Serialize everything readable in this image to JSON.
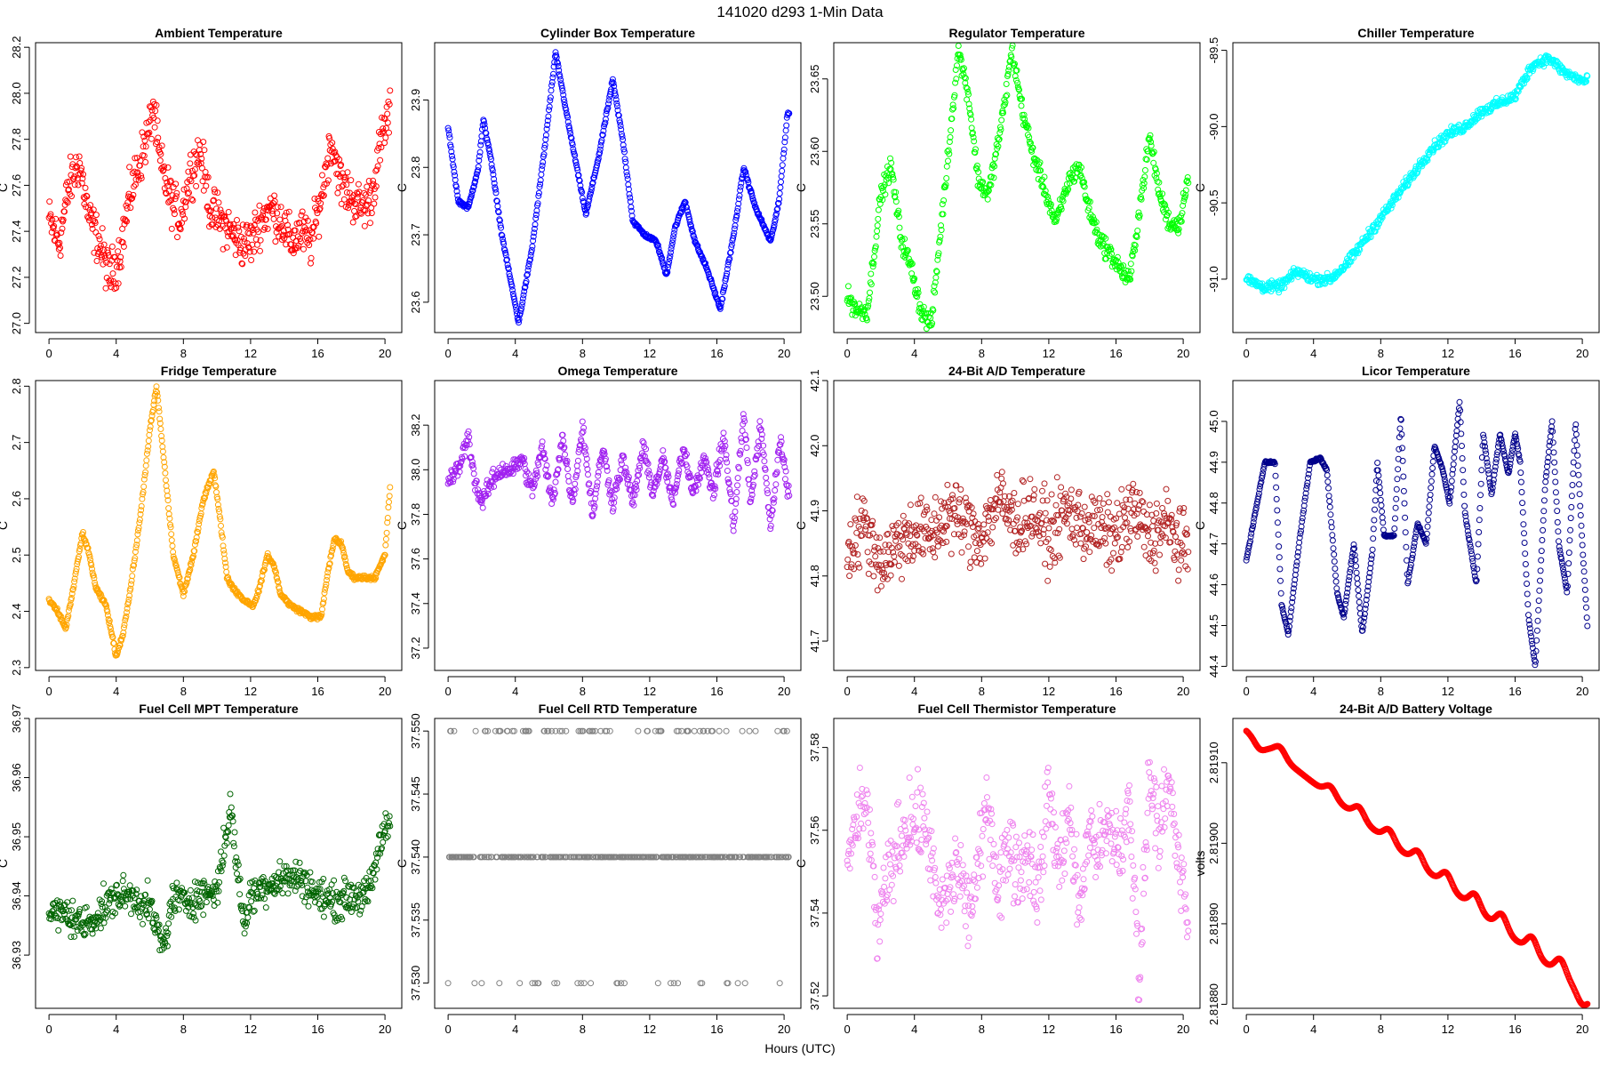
{
  "figure": {
    "super_title": "141020    d293    1-Min Data",
    "x_axis_label": "Hours (UTC)"
  },
  "chart_data": [
    {
      "type": "scatter",
      "title": "Ambient Temperature",
      "ylabel": "C",
      "xlabel": "",
      "color": "#ff0000",
      "xlim": [
        -0.8,
        21.0
      ],
      "ylim": [
        26.96,
        28.22
      ],
      "xticks": [
        0,
        4,
        8,
        12,
        16,
        20
      ],
      "yticks": [
        "27.0",
        "27.2",
        "27.4",
        "27.6",
        "27.8",
        "28.0",
        "28.2"
      ],
      "x": [
        0,
        0.6,
        1.2,
        1.8,
        2.4,
        3.0,
        3.6,
        4.2,
        4.8,
        5.4,
        6.0,
        6.2,
        6.6,
        7.2,
        7.8,
        8.4,
        9.0,
        9.6,
        10.2,
        10.8,
        11.4,
        12.0,
        12.6,
        13.2,
        13.8,
        14.4,
        15.0,
        15.6,
        16.2,
        16.8,
        17.4,
        18.0,
        18.6,
        19.2,
        19.8,
        20.2
      ],
      "y": [
        27.45,
        27.35,
        27.6,
        27.7,
        27.45,
        27.35,
        27.2,
        27.3,
        27.55,
        27.7,
        27.85,
        27.95,
        27.7,
        27.55,
        27.45,
        27.65,
        27.75,
        27.5,
        27.45,
        27.4,
        27.35,
        27.35,
        27.45,
        27.5,
        27.45,
        27.35,
        27.4,
        27.35,
        27.55,
        27.8,
        27.6,
        27.55,
        27.5,
        27.55,
        27.8,
        27.9
      ],
      "spread": 0.15
    },
    {
      "type": "scatter",
      "title": "Cylinder Box Temperature",
      "ylabel": "C",
      "xlabel": "",
      "color": "#0000ff",
      "xlim": [
        -0.8,
        21.0
      ],
      "ylim": [
        23.555,
        23.985
      ],
      "xticks": [
        0,
        4,
        8,
        12,
        16,
        20
      ],
      "yticks": [
        "23.6",
        "23.7",
        "23.8",
        "23.9"
      ],
      "x": [
        0,
        0.6,
        1.2,
        1.8,
        2.1,
        2.5,
        3.2,
        4.2,
        5.0,
        5.8,
        6.4,
        7.2,
        8.2,
        9.0,
        9.8,
        10.4,
        11.0,
        11.7,
        12.4,
        13.0,
        13.5,
        14.1,
        14.7,
        15.4,
        16.2,
        17.0,
        17.6,
        18.3,
        19.2,
        19.7,
        20.2
      ],
      "y": [
        23.86,
        23.75,
        23.74,
        23.8,
        23.87,
        23.82,
        23.7,
        23.57,
        23.68,
        23.84,
        23.97,
        23.86,
        23.73,
        23.82,
        23.93,
        23.84,
        23.72,
        23.7,
        23.69,
        23.64,
        23.71,
        23.75,
        23.69,
        23.65,
        23.59,
        23.7,
        23.8,
        23.74,
        23.69,
        23.75,
        23.88
      ],
      "spread": 0.004
    },
    {
      "type": "scatter",
      "title": "Regulator Temperature",
      "ylabel": "C",
      "xlabel": "",
      "color": "#00ff00",
      "xlim": [
        -0.8,
        21.0
      ],
      "ylim": [
        23.475,
        23.675
      ],
      "xticks": [
        0,
        4,
        8,
        12,
        16,
        20
      ],
      "yticks": [
        "23.50",
        "23.55",
        "23.60",
        "23.65"
      ],
      "x": [
        0,
        0.6,
        1.2,
        2.0,
        2.6,
        3.2,
        3.8,
        4.4,
        5.0,
        5.6,
        6.2,
        6.6,
        7.2,
        7.8,
        8.4,
        9.2,
        9.8,
        10.4,
        11.0,
        11.6,
        12.4,
        13.2,
        13.8,
        14.4,
        15.0,
        15.6,
        16.2,
        16.8,
        17.4,
        18.0,
        18.6,
        19.2,
        19.8,
        20.2
      ],
      "y": [
        23.5,
        23.49,
        23.49,
        23.57,
        23.59,
        23.54,
        23.52,
        23.49,
        23.48,
        23.55,
        23.62,
        23.67,
        23.64,
        23.58,
        23.57,
        23.62,
        23.67,
        23.63,
        23.6,
        23.58,
        23.55,
        23.58,
        23.59,
        23.56,
        23.54,
        23.53,
        23.52,
        23.51,
        23.56,
        23.61,
        23.57,
        23.55,
        23.55,
        23.58
      ],
      "spread": 0.01
    },
    {
      "type": "scatter",
      "title": "Chiller Temperature",
      "ylabel": "C",
      "xlabel": "",
      "color": "#00ffff",
      "xlim": [
        -0.8,
        21.0
      ],
      "ylim": [
        -91.35,
        -89.45
      ],
      "xticks": [
        0,
        4,
        8,
        12,
        16,
        20
      ],
      "yticks": [
        "-91.0",
        "-90.5",
        "-90.0",
        "-89.5"
      ],
      "x": [
        0,
        1,
        2,
        3,
        4,
        5,
        6,
        7,
        8,
        9,
        10,
        11,
        12,
        13,
        14,
        15,
        16,
        17,
        18,
        19,
        20
      ],
      "y": [
        -91.0,
        -91.05,
        -91.05,
        -90.95,
        -91.0,
        -91.0,
        -90.9,
        -90.75,
        -90.6,
        -90.45,
        -90.3,
        -90.15,
        -90.05,
        -90.0,
        -89.9,
        -89.85,
        -89.8,
        -89.6,
        -89.55,
        -89.65,
        -89.7
      ],
      "spread": 0.05
    },
    {
      "type": "scatter",
      "title": "Fridge Temperature",
      "ylabel": "C",
      "xlabel": "",
      "color": "#ffa500",
      "xlim": [
        -0.8,
        21.0
      ],
      "ylim": [
        2.295,
        2.81
      ],
      "xticks": [
        0,
        4,
        8,
        12,
        16,
        20
      ],
      "yticks": [
        "2.3",
        "2.4",
        "2.5",
        "2.6",
        "2.7",
        "2.8"
      ],
      "x": [
        0,
        0.5,
        1.0,
        1.5,
        2.0,
        2.4,
        2.8,
        3.4,
        4.0,
        4.4,
        4.8,
        5.4,
        6.0,
        6.4,
        6.8,
        7.4,
        8.0,
        8.6,
        9.2,
        9.8,
        10.2,
        10.6,
        11.0,
        11.6,
        12.2,
        12.6,
        13.0,
        13.4,
        13.8,
        14.4,
        15.0,
        15.6,
        16.2,
        16.6,
        17.0,
        17.4,
        17.8,
        18.2,
        18.8,
        19.4,
        20.0,
        20.3
      ],
      "y": [
        2.42,
        2.4,
        2.37,
        2.45,
        2.54,
        2.5,
        2.44,
        2.41,
        2.32,
        2.36,
        2.43,
        2.56,
        2.72,
        2.8,
        2.68,
        2.5,
        2.43,
        2.5,
        2.6,
        2.65,
        2.56,
        2.46,
        2.44,
        2.42,
        2.41,
        2.45,
        2.5,
        2.48,
        2.43,
        2.41,
        2.4,
        2.39,
        2.39,
        2.47,
        2.53,
        2.52,
        2.47,
        2.46,
        2.46,
        2.46,
        2.5,
        2.62
      ],
      "spread": 0.006
    },
    {
      "type": "scatter",
      "title": "Omega Temperature",
      "ylabel": "C",
      "xlabel": "",
      "color": "#a020f0",
      "xlim": [
        -0.8,
        21.0
      ],
      "ylim": [
        37.1,
        38.4
      ],
      "xticks": [
        0,
        4,
        8,
        12,
        16,
        20
      ],
      "yticks": [
        "37.2",
        "37.4",
        "37.6",
        "37.8",
        "38.0",
        "38.2"
      ],
      "x": [
        0,
        0.6,
        1.2,
        1.6,
        2.0,
        2.6,
        3.2,
        3.8,
        4.4,
        5.0,
        5.6,
        6.2,
        6.8,
        7.4,
        8.0,
        8.6,
        9.2,
        9.8,
        10.4,
        11.0,
        11.6,
        12.2,
        12.8,
        13.4,
        14.0,
        14.6,
        15.2,
        15.8,
        16.4,
        17.0,
        17.6,
        18.0,
        18.6,
        19.2,
        19.8,
        20.2
      ],
      "y": [
        37.95,
        38.0,
        38.15,
        37.95,
        37.85,
        37.95,
        38.0,
        38.0,
        38.05,
        37.9,
        38.1,
        37.85,
        38.15,
        37.85,
        38.2,
        37.8,
        38.1,
        37.85,
        38.05,
        37.85,
        38.1,
        37.9,
        38.05,
        37.85,
        38.1,
        37.9,
        38.05,
        37.9,
        38.15,
        37.75,
        38.25,
        37.85,
        38.2,
        37.75,
        38.15,
        37.9
      ],
      "spread": 0.06
    },
    {
      "type": "scatter",
      "title": "24-Bit A/D Temperature",
      "ylabel": "C",
      "xlabel": "",
      "color": "#b22222",
      "xlim": [
        -0.8,
        21.0
      ],
      "ylim": [
        41.655,
        42.1
      ],
      "xticks": [
        0,
        4,
        8,
        12,
        16,
        20
      ],
      "yticks": [
        "41.7",
        "41.8",
        "41.9",
        "42.0",
        "42.1"
      ],
      "x": [
        0,
        1,
        2,
        3,
        4,
        5,
        6,
        7,
        8,
        9,
        10,
        11,
        12,
        13,
        14,
        15,
        16,
        17,
        18,
        19,
        20
      ],
      "y": [
        41.84,
        41.88,
        41.82,
        41.85,
        41.87,
        41.86,
        41.9,
        41.88,
        41.86,
        41.92,
        41.88,
        41.9,
        41.86,
        41.9,
        41.88,
        41.87,
        41.86,
        41.9,
        41.86,
        41.88,
        41.84
      ],
      "spread": 0.08
    },
    {
      "type": "scatter",
      "title": "Licor Temperature",
      "ylabel": "C",
      "xlabel": "",
      "color": "#00008b",
      "xlim": [
        -0.8,
        21.0
      ],
      "ylim": [
        44.39,
        45.1
      ],
      "xticks": [
        0,
        4,
        8,
        12,
        16,
        20
      ],
      "yticks": [
        "44.4",
        "44.5",
        "44.6",
        "44.7",
        "44.8",
        "44.9",
        "45.0"
      ],
      "x": [
        0,
        1.1,
        1.7,
        2.1,
        2.5,
        3.2,
        3.8,
        4.4,
        4.8,
        5.4,
        5.8,
        6.4,
        6.9,
        7.5,
        7.8,
        8.2,
        8.8,
        9.2,
        9.6,
        10.2,
        10.7,
        11.2,
        11.7,
        12.1,
        12.7,
        13.0,
        13.7,
        14.1,
        14.6,
        15.1,
        15.6,
        16.0,
        16.3,
        16.8,
        17.2,
        17.4,
        17.8,
        18.2,
        18.6,
        19.1,
        19.6,
        20.0,
        20.3
      ],
      "y": [
        44.66,
        44.9,
        44.9,
        44.55,
        44.48,
        44.72,
        44.9,
        44.91,
        44.88,
        44.58,
        44.52,
        44.7,
        44.48,
        44.68,
        44.9,
        44.72,
        44.72,
        45.02,
        44.6,
        44.75,
        44.7,
        44.94,
        44.88,
        44.8,
        45.05,
        44.78,
        44.6,
        44.97,
        44.82,
        44.97,
        44.87,
        44.97,
        44.9,
        44.52,
        44.4,
        44.55,
        44.85,
        45.0,
        44.7,
        44.58,
        45.0,
        44.7,
        44.5
      ],
      "spread": 0.004
    },
    {
      "type": "scatter",
      "title": "Fuel Cell MPT Temperature",
      "ylabel": "C",
      "xlabel": "",
      "color": "#006400",
      "xlim": [
        -0.8,
        21.0
      ],
      "ylim": [
        36.921,
        36.97
      ],
      "xticks": [
        0,
        4,
        8,
        12,
        16,
        20
      ],
      "yticks": [
        "36.93",
        "36.94",
        "36.95",
        "36.96",
        "36.97"
      ],
      "x": [
        0,
        1,
        2,
        3,
        4,
        5,
        6,
        6.8,
        7.4,
        8,
        9,
        10,
        10.8,
        11.6,
        12,
        13,
        14,
        15,
        16,
        17,
        18,
        19,
        20
      ],
      "y": [
        36.937,
        36.937,
        36.935,
        36.937,
        36.94,
        36.94,
        36.938,
        36.931,
        36.94,
        36.939,
        36.94,
        36.941,
        36.955,
        36.935,
        36.94,
        36.942,
        36.943,
        36.943,
        36.94,
        36.939,
        36.94,
        36.94,
        36.952
      ],
      "spread": 0.0045
    },
    {
      "type": "scatter",
      "title": "Fuel Cell RTD Temperature",
      "ylabel": "C",
      "xlabel": "",
      "color": "#808080",
      "xlim": [
        -0.8,
        21.0
      ],
      "ylim": [
        37.528,
        37.551
      ],
      "xticks": [
        0,
        4,
        8,
        12,
        16,
        20
      ],
      "yticks": [
        "37.530",
        "37.535",
        "37.540",
        "37.545",
        "37.550"
      ],
      "levels": [
        37.53,
        37.54,
        37.55
      ]
    },
    {
      "type": "scatter",
      "title": "Fuel Cell Thermistor Temperature",
      "ylabel": "C",
      "xlabel": "",
      "color": "#ee82ee",
      "xlim": [
        -0.8,
        21.0
      ],
      "ylim": [
        37.517,
        37.587
      ],
      "xticks": [
        0,
        4,
        8,
        12,
        16,
        20
      ],
      "yticks": [
        "37.52",
        "37.54",
        "37.56",
        "37.58"
      ],
      "x": [
        0,
        0.6,
        1.2,
        1.8,
        2.4,
        3.0,
        3.6,
        4.2,
        4.8,
        5.4,
        6.0,
        6.6,
        7.2,
        7.8,
        8.4,
        9.0,
        9.6,
        10.2,
        10.8,
        11.4,
        12.0,
        12.6,
        13.2,
        13.8,
        14.4,
        15.0,
        15.6,
        16.2,
        16.8,
        17.4,
        18.0,
        18.6,
        19.2,
        19.8,
        20.2
      ],
      "y": [
        37.554,
        37.562,
        37.566,
        37.535,
        37.548,
        37.556,
        37.562,
        37.562,
        37.56,
        37.54,
        37.545,
        37.552,
        37.54,
        37.55,
        37.568,
        37.545,
        37.558,
        37.55,
        37.555,
        37.545,
        37.57,
        37.55,
        37.565,
        37.54,
        37.56,
        37.555,
        37.56,
        37.555,
        37.565,
        37.525,
        37.575,
        37.56,
        37.57,
        37.55,
        37.54
      ],
      "spread": 0.014
    },
    {
      "type": "scatter",
      "title": "24-Bit A/D Battery Voltage",
      "ylabel": "volts",
      "xlabel": "",
      "color": "#ff0000",
      "xlim": [
        -0.8,
        21.0
      ],
      "ylim": [
        2.818795,
        2.819155
      ],
      "xticks": [
        0,
        4,
        8,
        12,
        16,
        20
      ],
      "yticks": [
        "2.81880",
        "2.81890",
        "2.81900",
        "2.81910"
      ],
      "trend": {
        "x": [
          0,
          20.3
        ],
        "y": [
          2.81914,
          2.81881
        ]
      },
      "wiggles": [
        {
          "x": 0.8,
          "amp": -1e-05
        },
        {
          "x": 2.0,
          "amp": 1.2e-05
        },
        {
          "x": 5.0,
          "amp": 1.2e-05
        },
        {
          "x": 6.7,
          "amp": 1.4e-05
        },
        {
          "x": 8.5,
          "amp": 1.5e-05
        },
        {
          "x": 10.2,
          "amp": 1.6e-05
        },
        {
          "x": 11.9,
          "amp": 1.7e-05
        },
        {
          "x": 13.6,
          "amp": 1.8e-05
        },
        {
          "x": 15.2,
          "amp": 1.9e-05
        },
        {
          "x": 17.0,
          "amp": 2e-05
        },
        {
          "x": 18.7,
          "amp": 2e-05
        },
        {
          "x": 20.0,
          "amp": -1.5e-05
        }
      ]
    }
  ]
}
